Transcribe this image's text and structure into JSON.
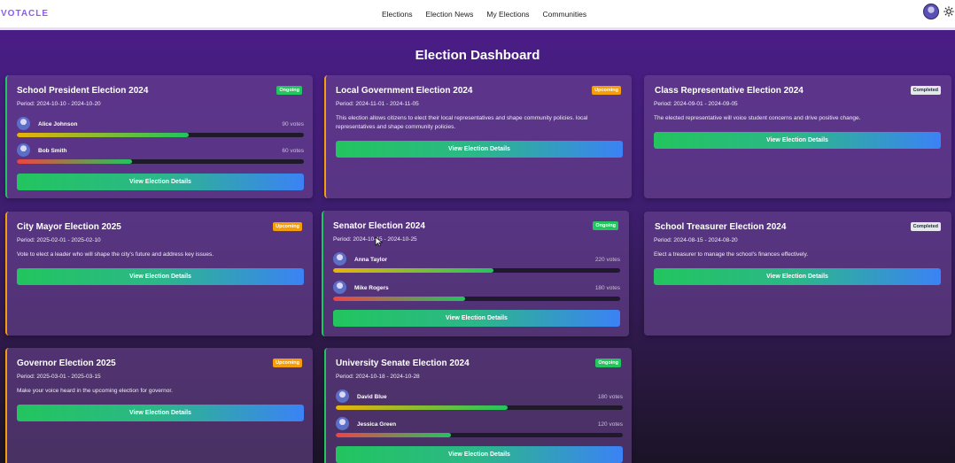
{
  "app": {
    "logo": "VOTACLE"
  },
  "nav": {
    "links": [
      "Elections",
      "Election News",
      "My Elections",
      "Communities"
    ]
  },
  "header": {
    "avatar_icon": "user-avatar",
    "theme_icon": "sun-icon"
  },
  "page": {
    "title": "Election Dashboard"
  },
  "colors": {
    "ongoing": "#22c55e",
    "upcoming": "#f59e0b",
    "completed": "#e5e7eb",
    "button_from": "#22c55e",
    "button_to": "#3b82f6"
  },
  "button_label": "View Election Details",
  "elections": [
    {
      "title": "School President Election 2024",
      "status": "Ongoing",
      "period": "Period: 2024-10-10 - 2024-10-20",
      "candidates": [
        {
          "name": "Alice Johnson",
          "votes": "90 votes",
          "share": 0.6
        },
        {
          "name": "Bob Smith",
          "votes": "60 votes",
          "share": 0.4
        }
      ]
    },
    {
      "title": "Local Government Election 2024",
      "status": "Upcoming",
      "period": "Period: 2024-11-01 - 2024-11-05",
      "description": "This election allows citizens to elect their local representatives and shape community policies. local representatives and shape community policies."
    },
    {
      "title": "Class Representative Election 2024",
      "status": "Completed",
      "period": "Period: 2024-09-01 - 2024-09-05",
      "description": "The elected representative will voice student concerns and drive positive change."
    },
    {
      "title": "City Mayor Election 2025",
      "status": "Upcoming",
      "period": "Period: 2025-02-01 - 2025-02-10",
      "description": "Vote to elect a leader who will shape the city's future and address key issues."
    },
    {
      "title": "Senator Election 2024",
      "status": "Ongoing",
      "period": "Period: 2024-10-15 - 2024-10-25",
      "candidates": [
        {
          "name": "Anna Taylor",
          "votes": "220 votes",
          "share": 0.55
        },
        {
          "name": "Mike Rogers",
          "votes": "180 votes",
          "share": 0.45
        }
      ]
    },
    {
      "title": "School Treasurer Election 2024",
      "status": "Completed",
      "period": "Period: 2024-08-15 - 2024-08-20",
      "description": "Elect a treasurer to manage the school's finances effectively."
    },
    {
      "title": "Governor Election 2025",
      "status": "Upcoming",
      "period": "Period: 2025-03-01 - 2025-03-15",
      "description": "Make your voice heard in the upcoming election for governor."
    },
    {
      "title": "University Senate Election 2024",
      "status": "Ongoing",
      "period": "Period: 2024-10-18 - 2024-10-28",
      "candidates": [
        {
          "name": "David Blue",
          "votes": "180 votes",
          "share": 0.6
        },
        {
          "name": "Jessica Green",
          "votes": "120 votes",
          "share": 0.4
        }
      ]
    }
  ]
}
